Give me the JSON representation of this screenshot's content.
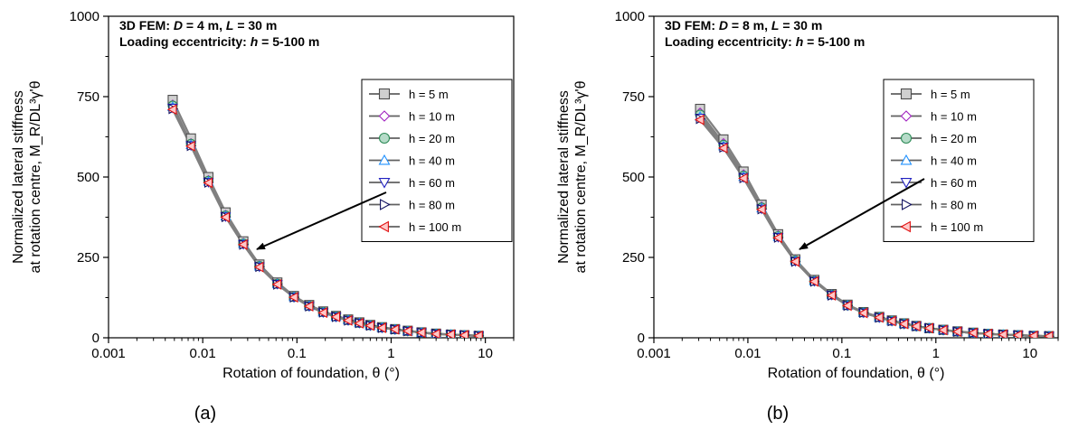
{
  "chart_data": [
    {
      "type": "line",
      "panel_label": "(a)",
      "annotation_line1": [
        {
          "text": "3D FEM: ",
          "italic": false
        },
        {
          "text": "D",
          "italic": true
        },
        {
          "text": " = 4 m, ",
          "italic": false
        },
        {
          "text": "L",
          "italic": true
        },
        {
          "text": " = 30 m",
          "italic": false
        }
      ],
      "annotation_line2": [
        {
          "text": "Loading eccentricity: ",
          "italic": false
        },
        {
          "text": "h",
          "italic": true
        },
        {
          "text": " = 5-100 m",
          "italic": false
        }
      ],
      "xlabel": "Rotation of foundation, θ (°)",
      "ylabel_line1": "Normalized lateral stiffness",
      "ylabel_line2": "at rotation centre, M_R/DL³γ'θ",
      "x_scale": "log",
      "xlim": [
        0.001,
        20
      ],
      "ylim": [
        0,
        1000
      ],
      "x_ticks": [
        "0.001",
        "0.01",
        "0.1",
        "1",
        "10"
      ],
      "y_ticks": [
        "0",
        "250",
        "500",
        "750",
        "1000"
      ],
      "legend_position": "right",
      "grid": false,
      "series": [
        {
          "name": "h = 5 m",
          "marker": "square",
          "color": "#4d4d4d",
          "fill": "#d0d0d0",
          "x": [
            0.0048,
            0.0075,
            0.0115,
            0.0175,
            0.027,
            0.04,
            0.062,
            0.093,
            0.135,
            0.19,
            0.26,
            0.35,
            0.46,
            0.6,
            0.8,
            1.1,
            1.5,
            2.1,
            3.0,
            4.3,
            6.0,
            8.5
          ],
          "y": [
            740,
            620,
            500,
            390,
            300,
            228,
            172,
            130,
            102,
            82,
            68,
            57,
            48,
            40,
            33,
            27,
            22,
            17,
            13,
            10,
            8,
            6
          ]
        },
        {
          "name": "h = 10 m",
          "marker": "diamond",
          "color": "#a020c0",
          "fill": "#ffffff",
          "x": [
            0.0048,
            0.0075,
            0.0115,
            0.0175,
            0.027,
            0.04,
            0.062,
            0.093,
            0.135,
            0.19,
            0.26,
            0.35,
            0.46,
            0.6,
            0.8,
            1.1,
            1.5,
            2.1,
            3.0,
            4.3,
            6.0,
            8.5
          ],
          "y": [
            725,
            605,
            490,
            382,
            295,
            224,
            169,
            128,
            100,
            80,
            66,
            56,
            47,
            39,
            32,
            26,
            21,
            16,
            13,
            10,
            8,
            6
          ]
        },
        {
          "name": "h = 20 m",
          "marker": "circle",
          "color": "#2e8b57",
          "fill": "#b5dbc8",
          "x": [
            0.0048,
            0.0075,
            0.0115,
            0.0175,
            0.027,
            0.04,
            0.062,
            0.093,
            0.135,
            0.19,
            0.26,
            0.35,
            0.46,
            0.6,
            0.8,
            1.1,
            1.5,
            2.1,
            3.0,
            4.3,
            6.0,
            8.5
          ],
          "y": [
            722,
            603,
            488,
            380,
            293,
            223,
            168,
            127,
            99,
            80,
            66,
            55,
            46,
            39,
            32,
            26,
            21,
            16,
            12,
            10,
            8,
            6
          ]
        },
        {
          "name": "h = 40 m",
          "marker": "triangle-up",
          "color": "#1e90ff",
          "fill": "#ffffff",
          "x": [
            0.0048,
            0.0075,
            0.0115,
            0.0175,
            0.027,
            0.04,
            0.062,
            0.093,
            0.135,
            0.19,
            0.26,
            0.35,
            0.46,
            0.6,
            0.8,
            1.1,
            1.5,
            2.1,
            3.0,
            4.3,
            6.0,
            8.5
          ],
          "y": [
            718,
            600,
            486,
            378,
            292,
            222,
            167,
            127,
            99,
            79,
            65,
            55,
            46,
            38,
            32,
            26,
            21,
            16,
            12,
            10,
            8,
            6
          ]
        },
        {
          "name": "h = 60 m",
          "marker": "triangle-down",
          "color": "#2020c0",
          "fill": "#ffffff",
          "x": [
            0.0048,
            0.0075,
            0.0115,
            0.0175,
            0.027,
            0.04,
            0.062,
            0.093,
            0.135,
            0.19,
            0.26,
            0.35,
            0.46,
            0.6,
            0.8,
            1.1,
            1.5,
            2.1,
            3.0,
            4.3,
            6.0,
            8.5
          ],
          "y": [
            715,
            598,
            484,
            377,
            291,
            221,
            167,
            126,
            98,
            79,
            65,
            54,
            46,
            38,
            31,
            26,
            21,
            16,
            12,
            10,
            8,
            6
          ]
        },
        {
          "name": "h = 80 m",
          "marker": "triangle-right",
          "color": "#101060",
          "fill": "#ffffff",
          "x": [
            0.0048,
            0.0075,
            0.0115,
            0.0175,
            0.027,
            0.04,
            0.062,
            0.093,
            0.135,
            0.19,
            0.26,
            0.35,
            0.46,
            0.6,
            0.8,
            1.1,
            1.5,
            2.1,
            3.0,
            4.3,
            6.0,
            8.5
          ],
          "y": [
            712,
            597,
            483,
            376,
            290,
            221,
            166,
            126,
            98,
            79,
            65,
            54,
            46,
            38,
            31,
            26,
            21,
            16,
            12,
            10,
            8,
            6
          ]
        },
        {
          "name": "h = 100 m",
          "marker": "triangle-left",
          "color": "#e01010",
          "fill": "#ffc8c8",
          "x": [
            0.0048,
            0.0075,
            0.0115,
            0.0175,
            0.027,
            0.04,
            0.062,
            0.093,
            0.135,
            0.19,
            0.26,
            0.35,
            0.46,
            0.6,
            0.8,
            1.1,
            1.5,
            2.1,
            3.0,
            4.3,
            6.0,
            8.5
          ],
          "y": [
            710,
            596,
            482,
            375,
            290,
            220,
            166,
            126,
            98,
            78,
            65,
            54,
            45,
            38,
            31,
            26,
            21,
            16,
            12,
            10,
            8,
            6
          ]
        }
      ]
    },
    {
      "type": "line",
      "panel_label": "(b)",
      "annotation_line1": [
        {
          "text": "3D FEM: ",
          "italic": false
        },
        {
          "text": "D",
          "italic": true
        },
        {
          "text": " = 8 m, ",
          "italic": false
        },
        {
          "text": "L",
          "italic": true
        },
        {
          "text": " = 30 m",
          "italic": false
        }
      ],
      "annotation_line2": [
        {
          "text": "Loading eccentricity: ",
          "italic": false
        },
        {
          "text": "h",
          "italic": true
        },
        {
          "text": " = 5-100 m",
          "italic": false
        }
      ],
      "xlabel": "Rotation of foundation, θ (°)",
      "ylabel_line1": "Normalized lateral stiffness",
      "ylabel_line2": "at rotation centre, M_R/DL³γ'θ",
      "x_scale": "log",
      "xlim": [
        0.001,
        20
      ],
      "ylim": [
        0,
        1000
      ],
      "x_ticks": [
        "0.001",
        "0.01",
        "0.1",
        "1",
        "10"
      ],
      "y_ticks": [
        "0",
        "250",
        "500",
        "750",
        "1000"
      ],
      "legend_position": "right",
      "grid": false,
      "series": [
        {
          "name": "h = 5 m",
          "marker": "square",
          "color": "#4d4d4d",
          "fill": "#d0d0d0",
          "x": [
            0.0031,
            0.0055,
            0.009,
            0.014,
            0.021,
            0.032,
            0.051,
            0.078,
            0.115,
            0.17,
            0.25,
            0.34,
            0.46,
            0.62,
            0.85,
            1.2,
            1.7,
            2.5,
            3.6,
            5.2,
            7.5,
            11,
            16
          ],
          "y": [
            712,
            617,
            517,
            414,
            322,
            244,
            180,
            136,
            103,
            80,
            65,
            54,
            45,
            37,
            30,
            25,
            20,
            16,
            12,
            10,
            8,
            6,
            5
          ]
        },
        {
          "name": "h = 10 m",
          "marker": "diamond",
          "color": "#a020c0",
          "fill": "#ffffff",
          "x": [
            0.0031,
            0.0055,
            0.009,
            0.014,
            0.021,
            0.032,
            0.051,
            0.078,
            0.115,
            0.17,
            0.25,
            0.34,
            0.46,
            0.62,
            0.85,
            1.2,
            1.7,
            2.5,
            3.6,
            5.2,
            7.5,
            11,
            16
          ],
          "y": [
            700,
            605,
            508,
            408,
            318,
            241,
            178,
            135,
            102,
            79,
            64,
            53,
            44,
            36,
            30,
            24,
            19,
            15,
            12,
            10,
            8,
            6,
            5
          ]
        },
        {
          "name": "h = 20 m",
          "marker": "circle",
          "color": "#2e8b57",
          "fill": "#b5dbc8",
          "x": [
            0.0031,
            0.0055,
            0.009,
            0.014,
            0.021,
            0.032,
            0.051,
            0.078,
            0.115,
            0.17,
            0.25,
            0.34,
            0.46,
            0.62,
            0.85,
            1.2,
            1.7,
            2.5,
            3.6,
            5.2,
            7.5,
            11,
            16
          ],
          "y": [
            694,
            600,
            504,
            405,
            316,
            240,
            177,
            134,
            101,
            79,
            64,
            53,
            44,
            36,
            30,
            24,
            19,
            15,
            12,
            10,
            8,
            6,
            5
          ]
        },
        {
          "name": "h = 40 m",
          "marker": "triangle-up",
          "color": "#1e90ff",
          "fill": "#ffffff",
          "x": [
            0.0031,
            0.0055,
            0.009,
            0.014,
            0.021,
            0.032,
            0.051,
            0.078,
            0.115,
            0.17,
            0.25,
            0.34,
            0.46,
            0.62,
            0.85,
            1.2,
            1.7,
            2.5,
            3.6,
            5.2,
            7.5,
            11,
            16
          ],
          "y": [
            688,
            596,
            501,
            403,
            314,
            239,
            176,
            133,
            101,
            78,
            63,
            52,
            44,
            36,
            30,
            24,
            19,
            15,
            12,
            10,
            8,
            6,
            5
          ]
        },
        {
          "name": "h = 60 m",
          "marker": "triangle-down",
          "color": "#2020c0",
          "fill": "#ffffff",
          "x": [
            0.0031,
            0.0055,
            0.009,
            0.014,
            0.021,
            0.032,
            0.051,
            0.078,
            0.115,
            0.17,
            0.25,
            0.34,
            0.46,
            0.62,
            0.85,
            1.2,
            1.7,
            2.5,
            3.6,
            5.2,
            7.5,
            11,
            16
          ],
          "y": [
            684,
            594,
            499,
            401,
            313,
            238,
            176,
            133,
            100,
            78,
            63,
            52,
            43,
            36,
            30,
            24,
            19,
            15,
            12,
            10,
            8,
            6,
            5
          ]
        },
        {
          "name": "h = 80 m",
          "marker": "triangle-right",
          "color": "#101060",
          "fill": "#ffffff",
          "x": [
            0.0031,
            0.0055,
            0.009,
            0.014,
            0.021,
            0.032,
            0.051,
            0.078,
            0.115,
            0.17,
            0.25,
            0.34,
            0.46,
            0.62,
            0.85,
            1.2,
            1.7,
            2.5,
            3.6,
            5.2,
            7.5,
            11,
            16
          ],
          "y": [
            681,
            592,
            497,
            400,
            312,
            237,
            175,
            132,
            100,
            78,
            63,
            52,
            43,
            36,
            30,
            24,
            19,
            15,
            12,
            10,
            8,
            6,
            5
          ]
        },
        {
          "name": "h = 100 m",
          "marker": "triangle-left",
          "color": "#e01010",
          "fill": "#ffc8c8",
          "x": [
            0.0031,
            0.0055,
            0.009,
            0.014,
            0.021,
            0.032,
            0.051,
            0.078,
            0.115,
            0.17,
            0.25,
            0.34,
            0.46,
            0.62,
            0.85,
            1.2,
            1.7,
            2.5,
            3.6,
            5.2,
            7.5,
            11,
            16
          ],
          "y": [
            678,
            590,
            496,
            399,
            311,
            237,
            175,
            132,
            100,
            77,
            63,
            52,
            43,
            36,
            30,
            24,
            19,
            15,
            12,
            10,
            8,
            6,
            5
          ]
        }
      ]
    }
  ]
}
